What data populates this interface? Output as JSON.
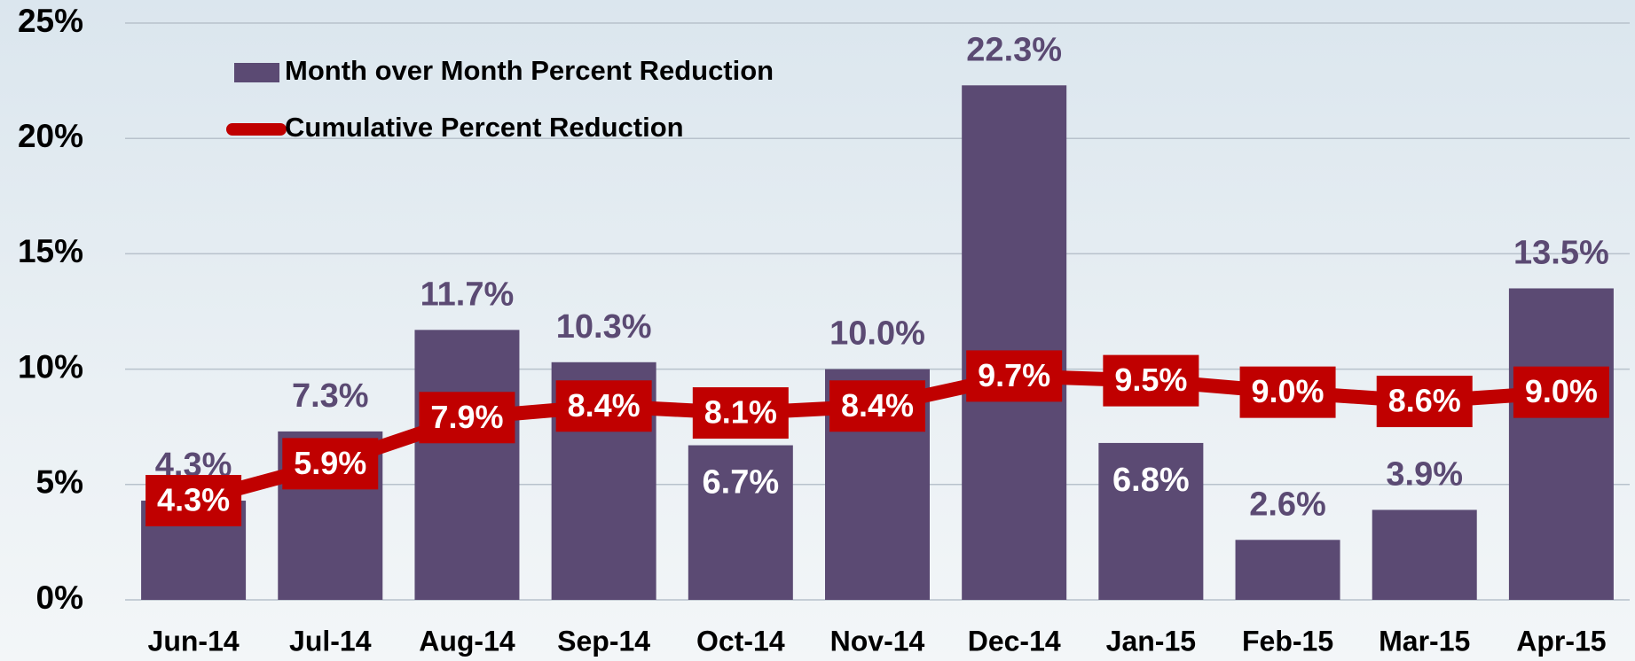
{
  "chart_data": {
    "type": "bar_line",
    "categories": [
      "Jun-14",
      "Jul-14",
      "Aug-14",
      "Sep-14",
      "Oct-14",
      "Nov-14",
      "Dec-14",
      "Jan-15",
      "Feb-15",
      "Mar-15",
      "Apr-15"
    ],
    "series": [
      {
        "name": "Month over Month Percent Reduction",
        "type": "bar",
        "color": "#5b4a73",
        "values": [
          4.3,
          7.3,
          11.7,
          10.3,
          6.7,
          10.0,
          22.3,
          6.8,
          2.6,
          3.9,
          13.5
        ],
        "value_labels": [
          "4.3%",
          "7.3%",
          "11.7%",
          "10.3%",
          "6.7%",
          "10.0%",
          "22.3%",
          "6.8%",
          "2.6%",
          "3.9%",
          "13.5%"
        ]
      },
      {
        "name": "Cumulative Percent Reduction",
        "type": "line",
        "color": "#c00000",
        "values": [
          4.3,
          5.9,
          7.9,
          8.4,
          8.1,
          8.4,
          9.7,
          9.5,
          9.0,
          8.6,
          9.0
        ],
        "value_labels": [
          "4.3%",
          "5.9%",
          "7.9%",
          "8.4%",
          "8.1%",
          "8.4%",
          "9.7%",
          "9.5%",
          "9.0%",
          "8.6%",
          "9.0%"
        ]
      }
    ],
    "ylim": [
      0,
      25
    ],
    "yticks": [
      {
        "value": 0,
        "label": "0%"
      },
      {
        "value": 5,
        "label": "5%"
      },
      {
        "value": 10,
        "label": "10%"
      },
      {
        "value": 15,
        "label": "15%"
      },
      {
        "value": 20,
        "label": "20%"
      },
      {
        "value": 25,
        "label": "25%"
      }
    ],
    "grid": true,
    "legend": "top-left"
  }
}
